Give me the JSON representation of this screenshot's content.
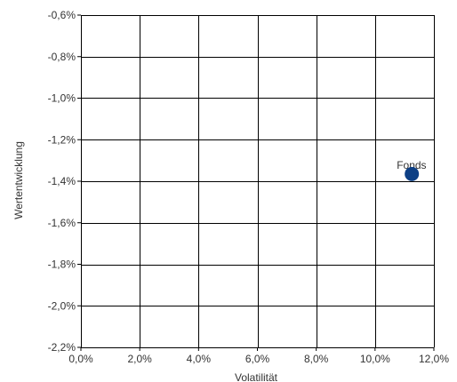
{
  "chart_data": {
    "type": "scatter",
    "title": "",
    "xlabel": "Volatilität",
    "ylabel": "Wertentwicklung",
    "xlim": [
      0,
      12
    ],
    "ylim": [
      -2.2,
      -0.6
    ],
    "x_ticks": [
      0,
      2,
      4,
      6,
      8,
      10,
      12
    ],
    "x_tick_labels": [
      "0,0%",
      "2,0%",
      "4,0%",
      "6,0%",
      "8,0%",
      "10,0%",
      "12,0%"
    ],
    "y_ticks": [
      -0.6,
      -0.8,
      -1.0,
      -1.2,
      -1.4,
      -1.6,
      -1.8,
      -2.0,
      -2.2
    ],
    "y_tick_labels": [
      "-0,6%",
      "-0,8%",
      "-1,0%",
      "-1,2%",
      "-1,4%",
      "-1,6%",
      "-1,8%",
      "-2,0%",
      "-2,2%"
    ],
    "grid": true,
    "points": [
      {
        "label": "Fonds",
        "x": 11.25,
        "y": -1.365
      }
    ],
    "colors": {
      "point": "#0d3f85",
      "grid": "#000000",
      "text": "#333333"
    }
  }
}
